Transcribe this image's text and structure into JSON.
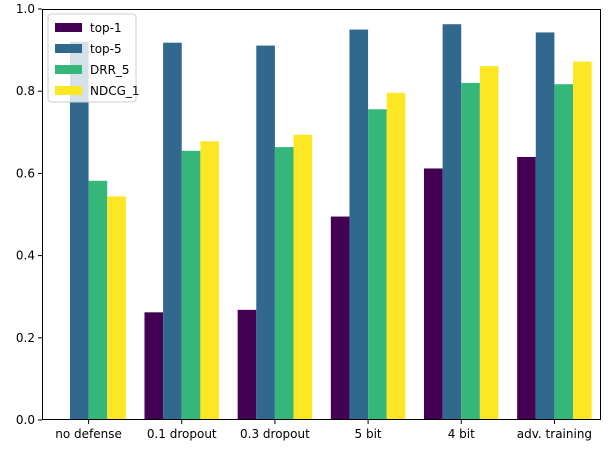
{
  "chart_data": {
    "type": "bar",
    "categories": [
      "no defense",
      "0.1 dropout",
      "0.3 dropout",
      "5 bit",
      "4 bit",
      "adv. training"
    ],
    "series": [
      {
        "name": "top-1",
        "color": "#440154",
        "values": [
          0.0,
          0.262,
          0.268,
          0.495,
          0.612,
          0.64
        ]
      },
      {
        "name": "top-5",
        "color": "#31688e",
        "values": [
          0.92,
          0.918,
          0.911,
          0.95,
          0.963,
          0.943
        ]
      },
      {
        "name": "DRR_5",
        "color": "#35b779",
        "values": [
          0.582,
          0.655,
          0.664,
          0.756,
          0.82,
          0.817
        ]
      },
      {
        "name": "NDCG_1",
        "color": "#fde725",
        "values": [
          0.544,
          0.678,
          0.694,
          0.796,
          0.861,
          0.872
        ]
      }
    ],
    "ylim": [
      0.0,
      1.0
    ],
    "yticks": [
      "0.0",
      "0.2",
      "0.4",
      "0.6",
      "0.8",
      "1.0"
    ],
    "legend_position": "upper-left",
    "grid": false
  }
}
